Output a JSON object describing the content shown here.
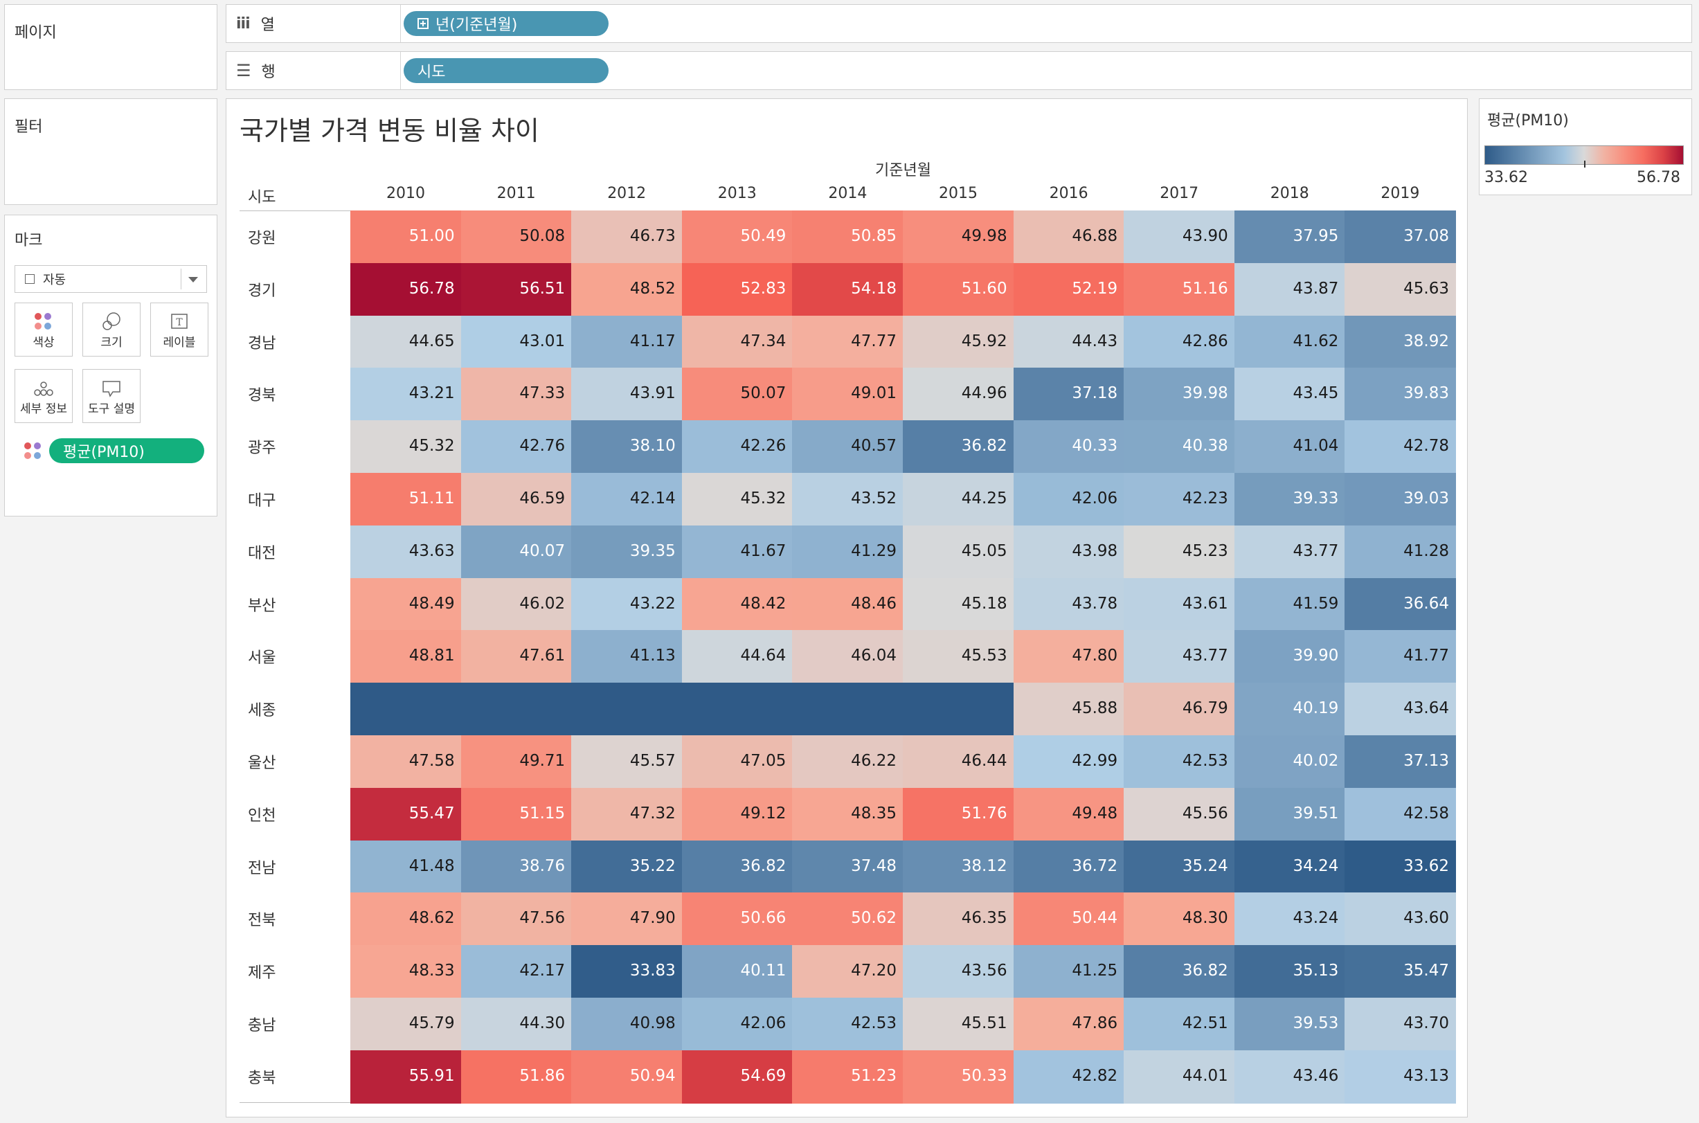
{
  "pages_shelf": {
    "title": "페이지"
  },
  "filters_shelf": {
    "title": "필터"
  },
  "marks_card": {
    "title": "마크",
    "mark_type": "자동",
    "buttons": {
      "color": "색상",
      "size": "크기",
      "label": "레이블",
      "detail": "세부 정보",
      "tooltip": "도구 설명"
    },
    "color_field": "평균(PM10)"
  },
  "columns_shelf": {
    "label": "열",
    "pill": "년(기준년월)"
  },
  "rows_shelf": {
    "label": "행",
    "pill": "시도"
  },
  "view": {
    "title": "국가별 가격 변동 비율 차이",
    "column_axis_title": "기준년월",
    "row_axis_title": "시도"
  },
  "legend": {
    "title": "평균(PM10)",
    "min": "33.62",
    "max": "56.78",
    "min_value": 33.62,
    "max_value": 56.78
  },
  "colors": {
    "low": "#2e5b88",
    "mid": "#d9d9d9",
    "high": "#a50f33",
    "null_cell": "#2f5a87",
    "pill_blue": "#4996b2",
    "pill_green": "#13b07d"
  },
  "chart_data": {
    "type": "heatmap",
    "x": [
      "2010",
      "2011",
      "2012",
      "2013",
      "2014",
      "2015",
      "2016",
      "2017",
      "2018",
      "2019"
    ],
    "y": [
      "강원",
      "경기",
      "경남",
      "경북",
      "광주",
      "대구",
      "대전",
      "부산",
      "서울",
      "세종",
      "울산",
      "인천",
      "전남",
      "전북",
      "제주",
      "충남",
      "충북"
    ],
    "values": [
      [
        51.0,
        50.08,
        46.73,
        50.49,
        50.85,
        49.98,
        46.88,
        43.9,
        37.95,
        37.08
      ],
      [
        56.78,
        56.51,
        48.52,
        52.83,
        54.18,
        51.6,
        52.19,
        51.16,
        43.87,
        45.63
      ],
      [
        44.65,
        43.01,
        41.17,
        47.34,
        47.77,
        45.92,
        44.43,
        42.86,
        41.62,
        38.92
      ],
      [
        43.21,
        47.33,
        43.91,
        50.07,
        49.01,
        44.96,
        37.18,
        39.98,
        43.45,
        39.83
      ],
      [
        45.32,
        42.76,
        38.1,
        42.26,
        40.57,
        36.82,
        40.33,
        40.38,
        41.04,
        42.78
      ],
      [
        51.11,
        46.59,
        42.14,
        45.32,
        43.52,
        44.25,
        42.06,
        42.23,
        39.33,
        39.03
      ],
      [
        43.63,
        40.07,
        39.35,
        41.67,
        41.29,
        45.05,
        43.98,
        45.23,
        43.77,
        41.28
      ],
      [
        48.49,
        46.02,
        43.22,
        48.42,
        48.46,
        45.18,
        43.78,
        43.61,
        41.59,
        36.64
      ],
      [
        48.81,
        47.61,
        41.13,
        44.64,
        46.04,
        45.53,
        47.8,
        43.77,
        39.9,
        41.77
      ],
      [
        null,
        null,
        null,
        null,
        null,
        null,
        45.88,
        46.79,
        40.19,
        43.64
      ],
      [
        47.58,
        49.71,
        45.57,
        47.05,
        46.22,
        46.44,
        42.99,
        42.53,
        40.02,
        37.13
      ],
      [
        55.47,
        51.15,
        47.32,
        49.12,
        48.35,
        51.76,
        49.48,
        45.56,
        39.51,
        42.58
      ],
      [
        41.48,
        38.76,
        35.22,
        36.82,
        37.48,
        38.12,
        36.72,
        35.24,
        34.24,
        33.62
      ],
      [
        48.62,
        47.56,
        47.9,
        50.66,
        50.62,
        46.35,
        50.44,
        48.3,
        43.24,
        43.6
      ],
      [
        48.33,
        42.17,
        33.83,
        40.11,
        47.2,
        43.56,
        41.25,
        36.82,
        35.13,
        35.47
      ],
      [
        45.79,
        44.3,
        40.98,
        42.06,
        42.53,
        45.51,
        47.86,
        42.51,
        39.53,
        43.7
      ],
      [
        55.91,
        51.86,
        50.94,
        54.69,
        51.23,
        50.33,
        42.82,
        44.01,
        43.46,
        43.13
      ]
    ],
    "labels": [
      [
        "51.00",
        "50.08",
        "46.73",
        "50.49",
        "50.85",
        "49.98",
        "46.88",
        "43.90",
        "37.95",
        "37.08"
      ],
      [
        "56.78",
        "56.51",
        "48.52",
        "52.83",
        "54.18",
        "51.60",
        "52.19",
        "51.16",
        "43.87",
        "45.63"
      ],
      [
        "44.65",
        "43.01",
        "41.17",
        "47.34",
        "47.77",
        "45.92",
        "44.43",
        "42.86",
        "41.62",
        "38.92"
      ],
      [
        "43.21",
        "47.33",
        "43.91",
        "50.07",
        "49.01",
        "44.96",
        "37.18",
        "39.98",
        "43.45",
        "39.83"
      ],
      [
        "45.32",
        "42.76",
        "38.10",
        "42.26",
        "40.57",
        "36.82",
        "40.33",
        "40.38",
        "41.04",
        "42.78"
      ],
      [
        "51.11",
        "46.59",
        "42.14",
        "45.32",
        "43.52",
        "44.25",
        "42.06",
        "42.23",
        "39.33",
        "39.03"
      ],
      [
        "43.63",
        "40.07",
        "39.35",
        "41.67",
        "41.29",
        "45.05",
        "43.98",
        "45.23",
        "43.77",
        "41.28"
      ],
      [
        "48.49",
        "46.02",
        "43.22",
        "48.42",
        "48.46",
        "45.18",
        "43.78",
        "43.61",
        "41.59",
        "36.64"
      ],
      [
        "48.81",
        "47.61",
        "41.13",
        "44.64",
        "46.04",
        "45.53",
        "47.80",
        "43.77",
        "39.90",
        "41.77"
      ],
      [
        null,
        null,
        null,
        null,
        null,
        null,
        "45.88",
        "46.79",
        "40.19",
        "43.64"
      ],
      [
        "47.58",
        "49.71",
        "45.57",
        "47.05",
        "46.22",
        "46.44",
        "42.99",
        "42.53",
        "40.02",
        "37.13"
      ],
      [
        "55.47",
        "51.15",
        "47.32",
        "49.12",
        "48.35",
        "51.76",
        "49.48",
        "45.56",
        "39.51",
        "42.58"
      ],
      [
        "41.48",
        "38.76",
        "35.22",
        "36.82",
        "37.48",
        "38.12",
        "36.72",
        "35.24",
        "34.24",
        "33.62"
      ],
      [
        "48.62",
        "47.56",
        "47.90",
        "50.66",
        "50.62",
        "46.35",
        "50.44",
        "48.30",
        "43.24",
        "43.60"
      ],
      [
        "48.33",
        "42.17",
        "33.83",
        "40.11",
        "47.20",
        "43.56",
        "41.25",
        "36.82",
        "35.13",
        "35.47"
      ],
      [
        "45.79",
        "44.30",
        "40.98",
        "42.06",
        "42.53",
        "45.51",
        "47.86",
        "42.51",
        "39.53",
        "43.70"
      ],
      [
        "55.91",
        "51.86",
        "50.94",
        "54.69",
        "51.23",
        "50.33",
        "42.82",
        "44.01",
        "43.46",
        "43.13"
      ]
    ],
    "color_range": [
      33.62,
      56.78
    ]
  }
}
